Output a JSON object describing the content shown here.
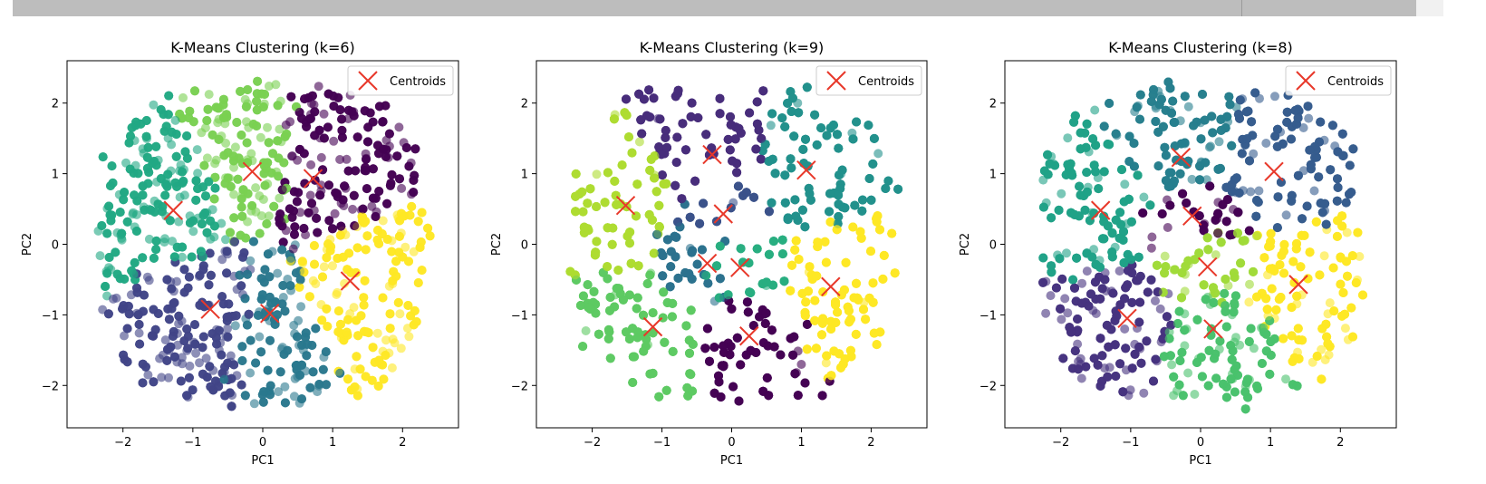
{
  "toolbar": {
    "colors": {
      "track": "#bdbdbd"
    }
  },
  "chart_data": [
    {
      "type": "scatter",
      "title": "K-Means Clustering (k=6)",
      "xlabel": "PC1",
      "ylabel": "PC2",
      "xlim": [
        -2.8,
        2.8
      ],
      "ylim": [
        -2.6,
        2.6
      ],
      "xticks": [
        -2,
        -1,
        0,
        1,
        2
      ],
      "yticks": [
        -2,
        -1,
        0,
        1,
        2
      ],
      "xtick_labels": [
        "−2",
        "−1",
        "0",
        "1",
        "2"
      ],
      "ytick_labels": [
        "−2",
        "−1",
        "0",
        "1",
        "2"
      ],
      "legend": {
        "label": "Centroids",
        "placement": "top-right"
      },
      "colormap": "viridis",
      "centroid_color": "#e8382a",
      "clusters": [
        {
          "centroid": [
            0.72,
            0.93
          ],
          "color": "#440154"
        },
        {
          "centroid": [
            -0.75,
            -0.92
          ],
          "color": "#414487"
        },
        {
          "centroid": [
            0.1,
            -0.98
          ],
          "color": "#2a788e"
        },
        {
          "centroid": [
            -1.28,
            0.48
          ],
          "color": "#22a884"
        },
        {
          "centroid": [
            -0.15,
            1.03
          ],
          "color": "#7ad151"
        },
        {
          "centroid": [
            1.25,
            -0.52
          ],
          "color": "#fde725"
        }
      ]
    },
    {
      "type": "scatter",
      "title": "K-Means Clustering (k=9)",
      "xlabel": "PC1",
      "ylabel": "PC2",
      "xlim": [
        -2.8,
        2.8
      ],
      "ylim": [
        -2.6,
        2.6
      ],
      "xticks": [
        -2,
        -1,
        0,
        1,
        2
      ],
      "yticks": [
        -2,
        -1,
        0,
        1,
        2
      ],
      "xtick_labels": [
        "−2",
        "−1",
        "0",
        "1",
        "2"
      ],
      "ytick_labels": [
        "−2",
        "−1",
        "0",
        "1",
        "2"
      ],
      "legend": {
        "label": "Centroids",
        "placement": "top-right"
      },
      "colormap": "viridis",
      "centroid_color": "#e8382a",
      "clusters": [
        {
          "centroid": [
            0.25,
            -1.3
          ],
          "color": "#440154"
        },
        {
          "centroid": [
            -0.28,
            1.27
          ],
          "color": "#472d7b"
        },
        {
          "centroid": [
            -0.12,
            0.43
          ],
          "color": "#3b528b"
        },
        {
          "centroid": [
            -0.35,
            -0.27
          ],
          "color": "#2c728e"
        },
        {
          "centroid": [
            1.07,
            1.05
          ],
          "color": "#21918c"
        },
        {
          "centroid": [
            0.12,
            -0.33
          ],
          "color": "#28ae80"
        },
        {
          "centroid": [
            -1.13,
            -1.17
          ],
          "color": "#5ec962"
        },
        {
          "centroid": [
            -1.52,
            0.55
          ],
          "color": "#addc30"
        },
        {
          "centroid": [
            1.42,
            -0.6
          ],
          "color": "#fde725"
        }
      ]
    },
    {
      "type": "scatter",
      "title": "K-Means Clustering (k=8)",
      "xlabel": "PC1",
      "ylabel": "PC2",
      "xlim": [
        -2.8,
        2.8
      ],
      "ylim": [
        -2.6,
        2.6
      ],
      "xticks": [
        -2,
        -1,
        0,
        1,
        2
      ],
      "yticks": [
        -2,
        -1,
        0,
        1,
        2
      ],
      "xtick_labels": [
        "−2",
        "−1",
        "0",
        "1",
        "2"
      ],
      "ytick_labels": [
        "−2",
        "−1",
        "0",
        "1",
        "2"
      ],
      "legend": {
        "label": "Centroids",
        "placement": "top-right"
      },
      "colormap": "viridis",
      "centroid_color": "#e8382a",
      "clusters": [
        {
          "centroid": [
            -0.12,
            0.4
          ],
          "color": "#440154"
        },
        {
          "centroid": [
            -1.05,
            -1.05
          ],
          "color": "#46327e"
        },
        {
          "centroid": [
            1.05,
            1.03
          ],
          "color": "#365c8d"
        },
        {
          "centroid": [
            -0.28,
            1.23
          ],
          "color": "#277f8e"
        },
        {
          "centroid": [
            -1.43,
            0.48
          ],
          "color": "#1fa187"
        },
        {
          "centroid": [
            0.18,
            -1.2
          ],
          "color": "#4ac16d"
        },
        {
          "centroid": [
            0.1,
            -0.32
          ],
          "color": "#a0da39"
        },
        {
          "centroid": [
            1.4,
            -0.57
          ],
          "color": "#fde725"
        }
      ]
    }
  ]
}
